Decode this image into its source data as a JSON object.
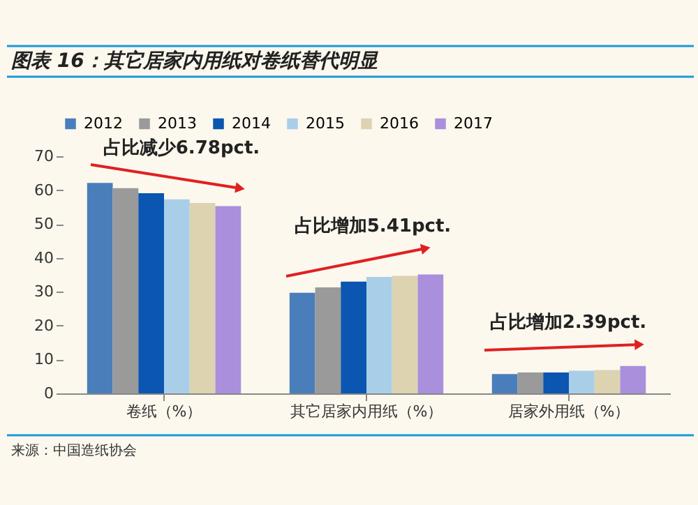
{
  "chart_data": {
    "type": "bar",
    "title": "图表 16：其它居家内用纸对卷纸替代明显",
    "categories": [
      "卷纸（%）",
      "其它居家内用纸（%）",
      "居家外用纸（%）"
    ],
    "series": [
      {
        "name": "2012",
        "color": "#4a7ebb",
        "values": [
          62.1,
          29.7,
          5.7
        ]
      },
      {
        "name": "2013",
        "color": "#9a9a9a",
        "values": [
          60.6,
          31.3,
          6.2
        ]
      },
      {
        "name": "2014",
        "color": "#0a56b0",
        "values": [
          59.1,
          33.0,
          6.2
        ]
      },
      {
        "name": "2015",
        "color": "#a9cfe8",
        "values": [
          57.3,
          34.4,
          6.7
        ]
      },
      {
        "name": "2016",
        "color": "#ddd3b0",
        "values": [
          56.2,
          34.7,
          6.9
        ]
      },
      {
        "name": "2017",
        "color": "#a98fdc",
        "values": [
          55.3,
          35.1,
          8.1
        ]
      }
    ],
    "ylim": [
      0,
      70
    ],
    "yticks": [
      0,
      10,
      20,
      30,
      40,
      50,
      60,
      70
    ],
    "grid": false,
    "legend": "top",
    "annotations": [
      "占比减少6.78pct.",
      "占比增加5.41pct.",
      "占比增加2.39pct.",
      "来源：中国造纸协会"
    ]
  }
}
